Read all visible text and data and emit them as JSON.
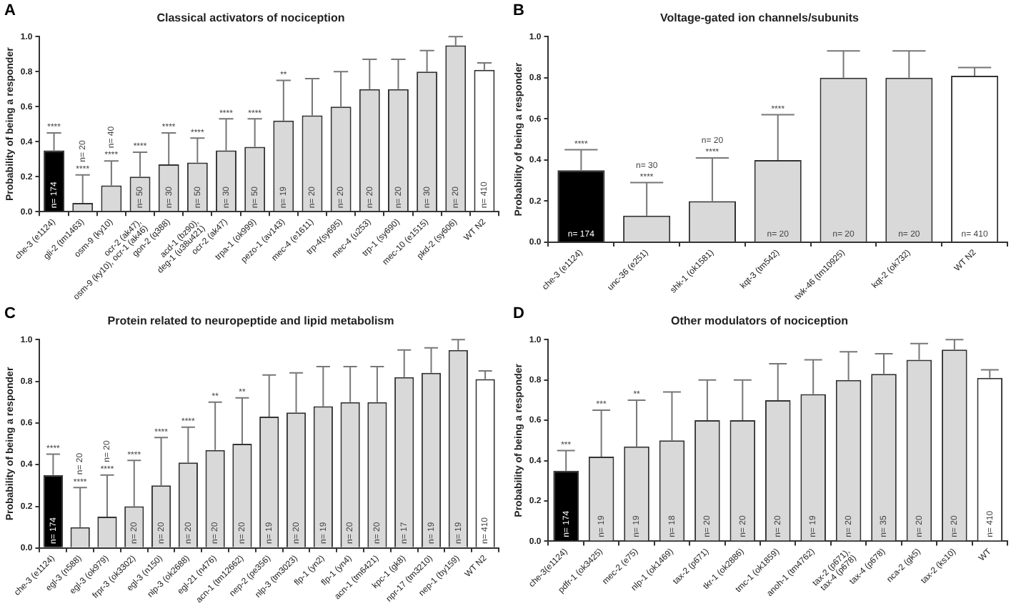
{
  "chart_data": [
    {
      "type": "bar",
      "title": "Classical activators of nociception",
      "ylabel": "Probability of being a responder",
      "categories": [
        "che-3 (e1124)",
        "gli-2 (tm1463)",
        "osm-9 (ky10)",
        "ocr-2 (ak47), osm-9 (ky10), ocr-1 (ak46)",
        "gon-2 (q388)",
        "acd-1 (bz90), deg-1 (u38u421)",
        "ocr-2 (ak47)",
        "trpa-1 (ok999)",
        "pezo-1 (av143)",
        "mec-4 (e1611)",
        "trp-4(sy695)",
        "mec-4 (u253)",
        "trp-1 (sy690)",
        "mec-10 (e1515)",
        "pkd-2 (sy606)",
        "WT N2"
      ],
      "values": [
        0.35,
        0.05,
        0.15,
        0.2,
        0.27,
        0.28,
        0.35,
        0.37,
        0.52,
        0.55,
        0.6,
        0.7,
        0.7,
        0.8,
        0.95,
        0.81
      ],
      "errors": [
        [
          0.35,
          0.45
        ],
        [
          0.05,
          0.21
        ],
        [
          0.15,
          0.29
        ],
        [
          0.2,
          0.34
        ],
        [
          0.27,
          0.45
        ],
        [
          0.28,
          0.42
        ],
        [
          0.35,
          0.53
        ],
        [
          0.37,
          0.53
        ],
        [
          0.52,
          0.75
        ],
        [
          0.55,
          0.76
        ],
        [
          0.6,
          0.8
        ],
        [
          0.7,
          0.87
        ],
        [
          0.7,
          0.87
        ],
        [
          0.8,
          0.92
        ],
        [
          0.95,
          1.0
        ],
        [
          0.81,
          0.85
        ]
      ],
      "colors": [
        "#000000",
        "#d9d9d9",
        "#d9d9d9",
        "#d9d9d9",
        "#d9d9d9",
        "#d9d9d9",
        "#d9d9d9",
        "#d9d9d9",
        "#d9d9d9",
        "#d9d9d9",
        "#d9d9d9",
        "#d9d9d9",
        "#d9d9d9",
        "#d9d9d9",
        "#d9d9d9",
        "#ffffff"
      ],
      "ylim": [
        0,
        1
      ],
      "yticks": [
        {
          "value": 0,
          "label": "0.0"
        },
        {
          "value": 0.2,
          "label": "0.2"
        },
        {
          "value": 0.4,
          "label": "0.4"
        },
        {
          "value": 0.6,
          "label": "0.6"
        },
        {
          "value": 0.8,
          "label": "0.8"
        },
        {
          "value": 1,
          "label": "1.0"
        }
      ],
      "annotations": [
        "A",
        {
          "text": "****",
          "x": "che-3 (e1124)",
          "y": 0.45
        },
        {
          "text": "****",
          "x": "gli-2 (tm1463)",
          "y": 0.21
        },
        {
          "text": "****",
          "x": "osm-9 (ky10)",
          "y": 0.29
        },
        {
          "text": "****",
          "x": "ocr-2 (ak47), osm-9 (ky10), ocr-1 (ak46)",
          "y": 0.34
        },
        {
          "text": "****",
          "x": "gon-2 (q388)",
          "y": 0.45
        },
        {
          "text": "****",
          "x": "acd-1 (bz90), deg-1 (u38u421)",
          "y": 0.42
        },
        {
          "text": "****",
          "x": "ocr-2 (ak47)",
          "y": 0.53
        },
        {
          "text": "****",
          "x": "trpa-1 (ok999)",
          "y": 0.53
        },
        {
          "text": "**",
          "x": "pezo-1 (av143)",
          "y": 0.75
        },
        {
          "text": "n= 174",
          "x": "che-3 (e1124)",
          "y": 0.02
        },
        {
          "text": "n= 20",
          "x": "gli-2 (tm1463)",
          "y": 0.21
        },
        {
          "text": "n= 40",
          "x": "osm-9 (ky10)",
          "y": 0.29
        },
        {
          "text": "n= 50",
          "x": "ocr-2 (ak47), osm-9 (ky10), ocr-1 (ak46)",
          "y": 0.02
        },
        {
          "text": "n= 30",
          "x": "gon-2 (q388)",
          "y": 0.02
        },
        {
          "text": "n= 50",
          "x": "acd-1 (bz90), deg-1 (u38u421)",
          "y": 0.02
        },
        {
          "text": "n= 30",
          "x": "ocr-2 (ak47)",
          "y": 0.02
        },
        {
          "text": "n= 50",
          "x": "trpa-1 (ok999)",
          "y": 0.02
        },
        {
          "text": "n= 19",
          "x": "pezo-1 (av143)",
          "y": 0.02
        },
        {
          "text": "n= 20",
          "x": "mec-4 (e1611)",
          "y": 0.02
        },
        {
          "text": "n= 20",
          "x": "trp-4(sy695)",
          "y": 0.02
        },
        {
          "text": "n= 20",
          "x": "mec-4 (u253)",
          "y": 0.02
        },
        {
          "text": "n= 20",
          "x": "trp-1 (sy690)",
          "y": 0.02
        },
        {
          "text": "n= 30",
          "x": "mec-10 (e1515)",
          "y": 0.02
        },
        {
          "text": "n= 20",
          "x": "pkd-2 (sy606)",
          "y": 0.02
        },
        {
          "text": "n= 410",
          "x": "WT N2",
          "y": 0.02
        }
      ]
    },
    {
      "type": "bar",
      "title": "Voltage-gated ion channels/subunits",
      "ylabel": "Probability of being a responder",
      "categories": [
        "che-3 (e1124)",
        "unc-36 (e251)",
        "shk-1 (ok1581)",
        "kqt-3 (tm542)",
        "twk-46 (tm10925)",
        "kqt-2 (ok732)",
        "WT N2"
      ],
      "values": [
        0.35,
        0.13,
        0.2,
        0.4,
        0.8,
        0.8,
        0.81
      ],
      "errors": [
        [
          0.35,
          0.45
        ],
        [
          0.13,
          0.29
        ],
        [
          0.2,
          0.41
        ],
        [
          0.4,
          0.62
        ],
        [
          0.8,
          0.93
        ],
        [
          0.8,
          0.93
        ],
        [
          0.81,
          0.85
        ]
      ],
      "colors": [
        "#000000",
        "#d9d9d9",
        "#d9d9d9",
        "#d9d9d9",
        "#d9d9d9",
        "#d9d9d9",
        "#ffffff"
      ],
      "ylim": [
        0,
        1
      ],
      "yticks": [
        {
          "value": 0,
          "label": "0.0"
        },
        {
          "value": 0.2,
          "label": "0.2"
        },
        {
          "value": 0.4,
          "label": "0.4"
        },
        {
          "value": 0.6,
          "label": "0.6"
        },
        {
          "value": 0.8,
          "label": "0.8"
        },
        {
          "value": 1,
          "label": "1.0"
        }
      ],
      "annotations": [
        "B",
        {
          "text": "****",
          "x": "che-3 (e1124)",
          "y": 0.45
        },
        {
          "text": "****",
          "x": "unc-36 (e251)",
          "y": 0.29
        },
        {
          "text": "****",
          "x": "shk-1 (ok1581)",
          "y": 0.41
        },
        {
          "text": "****",
          "x": "kqt-3 (tm542)",
          "y": 0.62
        },
        {
          "text": "n= 174",
          "x": "che-3 (e1124)",
          "y": 0.02
        },
        {
          "text": "n= 30",
          "x": "unc-36 (e251)",
          "y": 0.29
        },
        {
          "text": "n= 20",
          "x": "shk-1 (ok1581)",
          "y": 0.41
        },
        {
          "text": "n= 20",
          "x": "kqt-3 (tm542)",
          "y": 0.02
        },
        {
          "text": "n= 20",
          "x": "twk-46 (tm10925)",
          "y": 0.02
        },
        {
          "text": "n= 20",
          "x": "kqt-2 (ok732)",
          "y": 0.02
        },
        {
          "text": "n= 410",
          "x": "WT N2",
          "y": 0.02
        }
      ]
    },
    {
      "type": "bar",
      "title": "Protein related to neuropeptide and lipid metabolism",
      "ylabel": "Probability of being a responder",
      "categories": [
        "che-3 (e1124)",
        "egl-3 (n588)",
        "egl-3 (ok979)",
        "frpr-3 (ok3302)",
        "egl-3 (n150)",
        "nlp-3 (ok2688)",
        "egl-21 (n476)",
        "acn-1 (tm12662)",
        "nep-2 (pe356)",
        "nlp-3 (tm3023)",
        "flp-1 (yn2)",
        "flp-1 (yn4)",
        "acn-1 (tm6421)",
        "kpc-1 (gk8)",
        "npr-17 (tm3210)",
        "nep-1 (by159)",
        "WT N2"
      ],
      "values": [
        0.35,
        0.1,
        0.15,
        0.2,
        0.3,
        0.41,
        0.47,
        0.5,
        0.63,
        0.65,
        0.68,
        0.7,
        0.7,
        0.82,
        0.84,
        0.95,
        0.81
      ],
      "errors": [
        [
          0.35,
          0.45
        ],
        [
          0.1,
          0.29
        ],
        [
          0.15,
          0.35
        ],
        [
          0.2,
          0.42
        ],
        [
          0.3,
          0.53
        ],
        [
          0.41,
          0.58
        ],
        [
          0.47,
          0.7
        ],
        [
          0.5,
          0.72
        ],
        [
          0.63,
          0.83
        ],
        [
          0.65,
          0.84
        ],
        [
          0.68,
          0.87
        ],
        [
          0.7,
          0.87
        ],
        [
          0.7,
          0.87
        ],
        [
          0.82,
          0.95
        ],
        [
          0.84,
          0.96
        ],
        [
          0.95,
          1.0
        ],
        [
          0.81,
          0.85
        ]
      ],
      "colors": [
        "#000000",
        "#d9d9d9",
        "#d9d9d9",
        "#d9d9d9",
        "#d9d9d9",
        "#d9d9d9",
        "#d9d9d9",
        "#d9d9d9",
        "#d9d9d9",
        "#d9d9d9",
        "#d9d9d9",
        "#d9d9d9",
        "#d9d9d9",
        "#d9d9d9",
        "#d9d9d9",
        "#d9d9d9",
        "#ffffff"
      ],
      "ylim": [
        0,
        1
      ],
      "yticks": [
        {
          "value": 0,
          "label": "0.0"
        },
        {
          "value": 0.2,
          "label": "0.2"
        },
        {
          "value": 0.4,
          "label": "0.4"
        },
        {
          "value": 0.6,
          "label": "0.6"
        },
        {
          "value": 0.8,
          "label": "0.8"
        },
        {
          "value": 1,
          "label": "1.0"
        }
      ],
      "annotations": [
        "C",
        {
          "text": "****",
          "x": "che-3 (e1124)",
          "y": 0.45
        },
        {
          "text": "****",
          "x": "egl-3 (n588)",
          "y": 0.29
        },
        {
          "text": "****",
          "x": "egl-3 (ok979)",
          "y": 0.35
        },
        {
          "text": "****",
          "x": "frpr-3 (ok3302)",
          "y": 0.42
        },
        {
          "text": "****",
          "x": "egl-3 (n150)",
          "y": 0.53
        },
        {
          "text": "****",
          "x": "nlp-3 (ok2688)",
          "y": 0.58
        },
        {
          "text": "**",
          "x": "egl-21 (n476)",
          "y": 0.7
        },
        {
          "text": "**",
          "x": "acn-1 (tm12662)",
          "y": 0.72
        },
        {
          "text": "n= 174",
          "x": "che-3 (e1124)",
          "y": 0.02
        },
        {
          "text": "n= 20",
          "x": "egl-3 (n588)",
          "y": 0.29
        },
        {
          "text": "n= 20",
          "x": "egl-3 (ok979)",
          "y": 0.35
        },
        {
          "text": "n= 20",
          "x": "frpr-3 (ok3302)",
          "y": 0.02
        },
        {
          "text": "n= 20",
          "x": "egl-3 (n150)",
          "y": 0.02
        },
        {
          "text": "n= 20",
          "x": "nlp-3 (ok2688)",
          "y": 0.02
        },
        {
          "text": "n= 20",
          "x": "egl-21 (n476)",
          "y": 0.02
        },
        {
          "text": "n= 20",
          "x": "acn-1 (tm12662)",
          "y": 0.02
        },
        {
          "text": "n= 19",
          "x": "nep-2 (pe356)",
          "y": 0.02
        },
        {
          "text": "n= 20",
          "x": "nlp-3 (tm3023)",
          "y": 0.02
        },
        {
          "text": "n= 19",
          "x": "flp-1 (yn2)",
          "y": 0.02
        },
        {
          "text": "n= 20",
          "x": "flp-1 (yn4)",
          "y": 0.02
        },
        {
          "text": "n= 20",
          "x": "acn-1 (tm6421)",
          "y": 0.02
        },
        {
          "text": "n= 17",
          "x": "kpc-1 (gk8)",
          "y": 0.02
        },
        {
          "text": "n= 19",
          "x": "npr-17 (tm3210)",
          "y": 0.02
        },
        {
          "text": "n= 19",
          "x": "nep-1 (by159)",
          "y": 0.02
        },
        {
          "text": "n= 410",
          "x": "WT N2",
          "y": 0.02
        }
      ]
    },
    {
      "type": "bar",
      "title": "Other modulators of nociception",
      "ylabel": "Probability of being a responder",
      "categories": [
        "che-3(e1124)",
        "pdfr-1 (ok3425)",
        "mec-2 (e75)",
        "nlp-1 (ok1469)",
        "tax-2 (p671)",
        "tkr-1 (ok2886)",
        "tmc-1 (ok1859)",
        "anoh-1 (tm4762)",
        "tax-2 (p671), tax-4 (p678)",
        "tax-4 (p678)",
        "nca-2 (gk5)",
        "tax-2 (ks10)",
        "WT"
      ],
      "values": [
        0.35,
        0.42,
        0.47,
        0.5,
        0.6,
        0.6,
        0.7,
        0.73,
        0.8,
        0.83,
        0.9,
        0.95,
        0.81
      ],
      "errors": [
        [
          0.35,
          0.45
        ],
        [
          0.42,
          0.65
        ],
        [
          0.47,
          0.7
        ],
        [
          0.5,
          0.74
        ],
        [
          0.6,
          0.8
        ],
        [
          0.6,
          0.8
        ],
        [
          0.7,
          0.88
        ],
        [
          0.73,
          0.9
        ],
        [
          0.8,
          0.94
        ],
        [
          0.83,
          0.93
        ],
        [
          0.9,
          0.98
        ],
        [
          0.95,
          1.0
        ],
        [
          0.81,
          0.85
        ]
      ],
      "colors": [
        "#000000",
        "#d9d9d9",
        "#d9d9d9",
        "#d9d9d9",
        "#d9d9d9",
        "#d9d9d9",
        "#d9d9d9",
        "#d9d9d9",
        "#d9d9d9",
        "#d9d9d9",
        "#d9d9d9",
        "#d9d9d9",
        "#ffffff"
      ],
      "ylim": [
        0,
        1
      ],
      "yticks": [
        {
          "value": 0,
          "label": "0.0"
        },
        {
          "value": 0.2,
          "label": "0.2"
        },
        {
          "value": 0.4,
          "label": "0.4"
        },
        {
          "value": 0.6,
          "label": "0.6"
        },
        {
          "value": 0.8,
          "label": "0.8"
        },
        {
          "value": 1,
          "label": "1.0"
        }
      ],
      "annotations": [
        "D",
        {
          "text": "***",
          "x": "che-3(e1124)",
          "y": 0.45
        },
        {
          "text": "***",
          "x": "pdfr-1 (ok3425)",
          "y": 0.65
        },
        {
          "text": "**",
          "x": "mec-2 (e75)",
          "y": 0.7
        },
        {
          "text": "n= 174",
          "x": "che-3(e1124)",
          "y": 0.02
        },
        {
          "text": "n= 19",
          "x": "pdfr-1 (ok3425)",
          "y": 0.02
        },
        {
          "text": "n= 19",
          "x": "mec-2 (e75)",
          "y": 0.02
        },
        {
          "text": "n= 18",
          "x": "nlp-1 (ok1469)",
          "y": 0.02
        },
        {
          "text": "n= 20",
          "x": "tax-2 (p671)",
          "y": 0.02
        },
        {
          "text": "n= 20",
          "x": "tkr-1 (ok2886)",
          "y": 0.02
        },
        {
          "text": "n= 20",
          "x": "tmc-1 (ok1859)",
          "y": 0.02
        },
        {
          "text": "n= 19",
          "x": "anoh-1 (tm4762)",
          "y": 0.02
        },
        {
          "text": "n= 20",
          "x": "tax-2 (p671), tax-4 (p678)",
          "y": 0.02
        },
        {
          "text": "n= 35",
          "x": "tax-4 (p678)",
          "y": 0.02
        },
        {
          "text": "n= 20",
          "x": "nca-2 (gk5)",
          "y": 0.02
        },
        {
          "text": "n= 20",
          "x": "tax-2 (ks10)",
          "y": 0.02
        },
        {
          "text": "n= 410",
          "x": "WT",
          "y": 0.02
        }
      ]
    }
  ]
}
